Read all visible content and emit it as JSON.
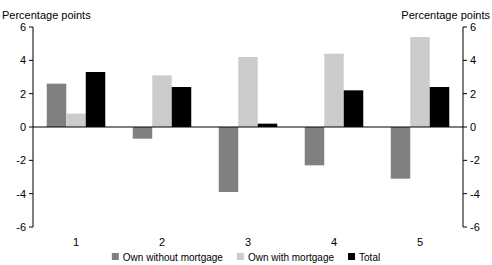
{
  "chart_data": {
    "type": "bar",
    "y_label": "Percentage points",
    "y2_label": "Percentage points",
    "categories": [
      "1",
      "2",
      "3",
      "4",
      "5"
    ],
    "series": [
      {
        "name": "Own without mortgage",
        "color": "#808080",
        "values": [
          2.6,
          -0.7,
          -3.9,
          -2.3,
          -3.1
        ]
      },
      {
        "name": "Own with mortgage",
        "color": "#cccccc",
        "values": [
          0.8,
          3.1,
          4.2,
          4.4,
          5.4
        ]
      },
      {
        "name": "Total",
        "color": "#000000",
        "values": [
          3.3,
          2.4,
          0.2,
          2.2,
          2.4
        ]
      }
    ],
    "ylim": [
      -6,
      6
    ],
    "yticks": [
      -6,
      -4,
      -2,
      0,
      2,
      4,
      6
    ],
    "y2lim": [
      -6,
      6
    ],
    "y2ticks": [
      -6,
      -4,
      -2,
      0,
      2,
      4,
      6
    ],
    "grid": false,
    "legend": "bottom"
  }
}
